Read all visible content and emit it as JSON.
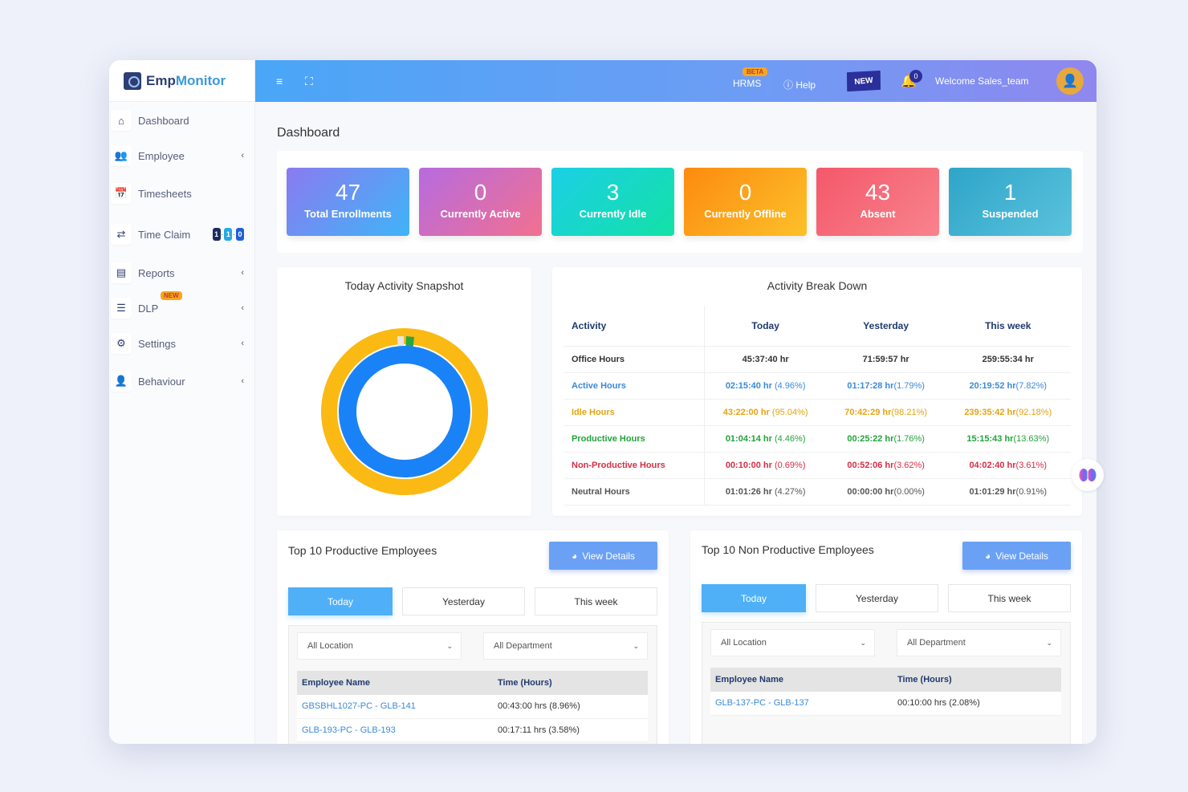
{
  "app": {
    "logo_prefix": "Emp",
    "logo_suffix": "Monitor"
  },
  "sidebar": {
    "items": [
      {
        "label": "Dashboard",
        "icon": "home-icon"
      },
      {
        "label": "Employee",
        "icon": "users-icon"
      },
      {
        "label": "Timesheets",
        "icon": "calendar-icon"
      },
      {
        "label": "Time Claim",
        "icon": "swap-icon",
        "badges": [
          "1",
          "1",
          "0"
        ]
      },
      {
        "label": "Reports",
        "icon": "report-icon"
      },
      {
        "label": "DLP",
        "icon": "sliders-icon",
        "badge": "NEW"
      },
      {
        "label": "Settings",
        "icon": "gear-icon"
      },
      {
        "label": "Behaviour",
        "icon": "user-gear-icon"
      }
    ]
  },
  "topbar": {
    "hrms_label": "HRMS",
    "beta_badge": "BETA",
    "help_label": "Help",
    "new_flag": "NEW",
    "notification_count": "0",
    "welcome_text": "Welcome Sales_team"
  },
  "page": {
    "title": "Dashboard"
  },
  "stats": [
    {
      "value": "47",
      "label": "Total Enrollments",
      "gradient": [
        "#8a7bf0",
        "#3fb4f7"
      ]
    },
    {
      "value": "0",
      "label": "Currently Active",
      "gradient": [
        "#b66be0",
        "#f2708f"
      ]
    },
    {
      "value": "3",
      "label": "Currently Idle",
      "gradient": [
        "#1ccfe6",
        "#13e1a6"
      ]
    },
    {
      "value": "0",
      "label": "Currently Offline",
      "gradient": [
        "#fd8a0f",
        "#fcc12a"
      ]
    },
    {
      "value": "43",
      "label": "Absent",
      "gradient": [
        "#f4586a",
        "#f8838d"
      ]
    },
    {
      "value": "1",
      "label": "Suspended",
      "gradient": [
        "#2ea5c8",
        "#5bc2dd"
      ]
    }
  ],
  "snapshot": {
    "title": "Today Activity Snapshot"
  },
  "chart_data": {
    "type": "pie",
    "title": "Today Activity Snapshot",
    "rings": [
      {
        "name": "Office Hours",
        "slices": [
          {
            "label": "Active",
            "value": 100,
            "color": "#1a82f7"
          }
        ]
      },
      {
        "name": "Breakdown",
        "slices": [
          {
            "label": "Idle Hours",
            "value": 95.04,
            "color": "#fbb914"
          },
          {
            "label": "Neutral Hours",
            "value": 2.3,
            "color": "#e6e6e6"
          },
          {
            "label": "Productive Hours",
            "value": 2.2,
            "color": "#28a745"
          },
          {
            "label": "Non-Productive Hours",
            "value": 0.46,
            "color": "#dc3545"
          }
        ]
      }
    ]
  },
  "breakdown": {
    "title": "Activity Break Down",
    "headers": [
      "Activity",
      "Today",
      "Yesterday",
      "This week"
    ],
    "rows": [
      {
        "label": "Office Hours",
        "color": "#333333",
        "today": "45:37:40 hr",
        "today_pct": "",
        "yesterday": "71:59:57 hr",
        "yesterday_pct": "",
        "week": "259:55:34 hr",
        "week_pct": ""
      },
      {
        "label": "Active Hours",
        "color": "#3a8ad9",
        "today": "02:15:40 hr",
        "today_pct": " (4.96%)",
        "yesterday": "01:17:28 hr",
        "yesterday_pct": "(1.79%)",
        "week": "20:19:52 hr",
        "week_pct": "(7.82%)"
      },
      {
        "label": "Idle Hours",
        "color": "#e5a312",
        "today": "43:22:00 hr",
        "today_pct": " (95.04%)",
        "yesterday": "70:42:29 hr",
        "yesterday_pct": "(98.21%)",
        "week": "239:35:42 hr",
        "week_pct": "(92.18%)"
      },
      {
        "label": "Productive Hours",
        "color": "#22a33b",
        "today": "01:04:14 hr",
        "today_pct": " (4.46%)",
        "yesterday": "00:25:22 hr",
        "yesterday_pct": "(1.76%)",
        "week": "15:15:43 hr",
        "week_pct": "(13.63%)"
      },
      {
        "label": "Non-Productive Hours",
        "color": "#d62e44",
        "today": "00:10:00 hr",
        "today_pct": " (0.69%)",
        "yesterday": "00:52:06 hr",
        "yesterday_pct": "(3.62%)",
        "week": "04:02:40 hr",
        "week_pct": "(3.61%)"
      },
      {
        "label": "Neutral Hours",
        "color": "#555555",
        "today": "01:01:26 hr",
        "today_pct": " (4.27%)",
        "yesterday": "00:00:00 hr",
        "yesterday_pct": "(0.00%)",
        "week": "01:01:29 hr",
        "week_pct": "(0.91%)"
      }
    ]
  },
  "productive": {
    "title": "Top 10 Productive Employees",
    "view_details": "View Details",
    "tabs": [
      "Today",
      "Yesterday",
      "This week"
    ],
    "location": "All Location",
    "department": "All Department",
    "headers": [
      "Employee Name",
      "Time (Hours)"
    ],
    "rows": [
      {
        "name": "GBSBHL1027-PC - GLB-141",
        "time": "00:43:00 hrs (8.96%)"
      },
      {
        "name": "GLB-193-PC - GLB-193",
        "time": "00:17:11 hrs (3.58%)"
      }
    ]
  },
  "nonproductive": {
    "title": "Top 10 Non Productive Employees",
    "view_details": "View Details",
    "tabs": [
      "Today",
      "Yesterday",
      "This week"
    ],
    "location": "All Location",
    "department": "All Department",
    "headers": [
      "Employee Name",
      "Time (Hours)"
    ],
    "rows": [
      {
        "name": "GLB-137-PC - GLB-137",
        "time": "00:10:00 hrs (2.08%)"
      }
    ]
  }
}
